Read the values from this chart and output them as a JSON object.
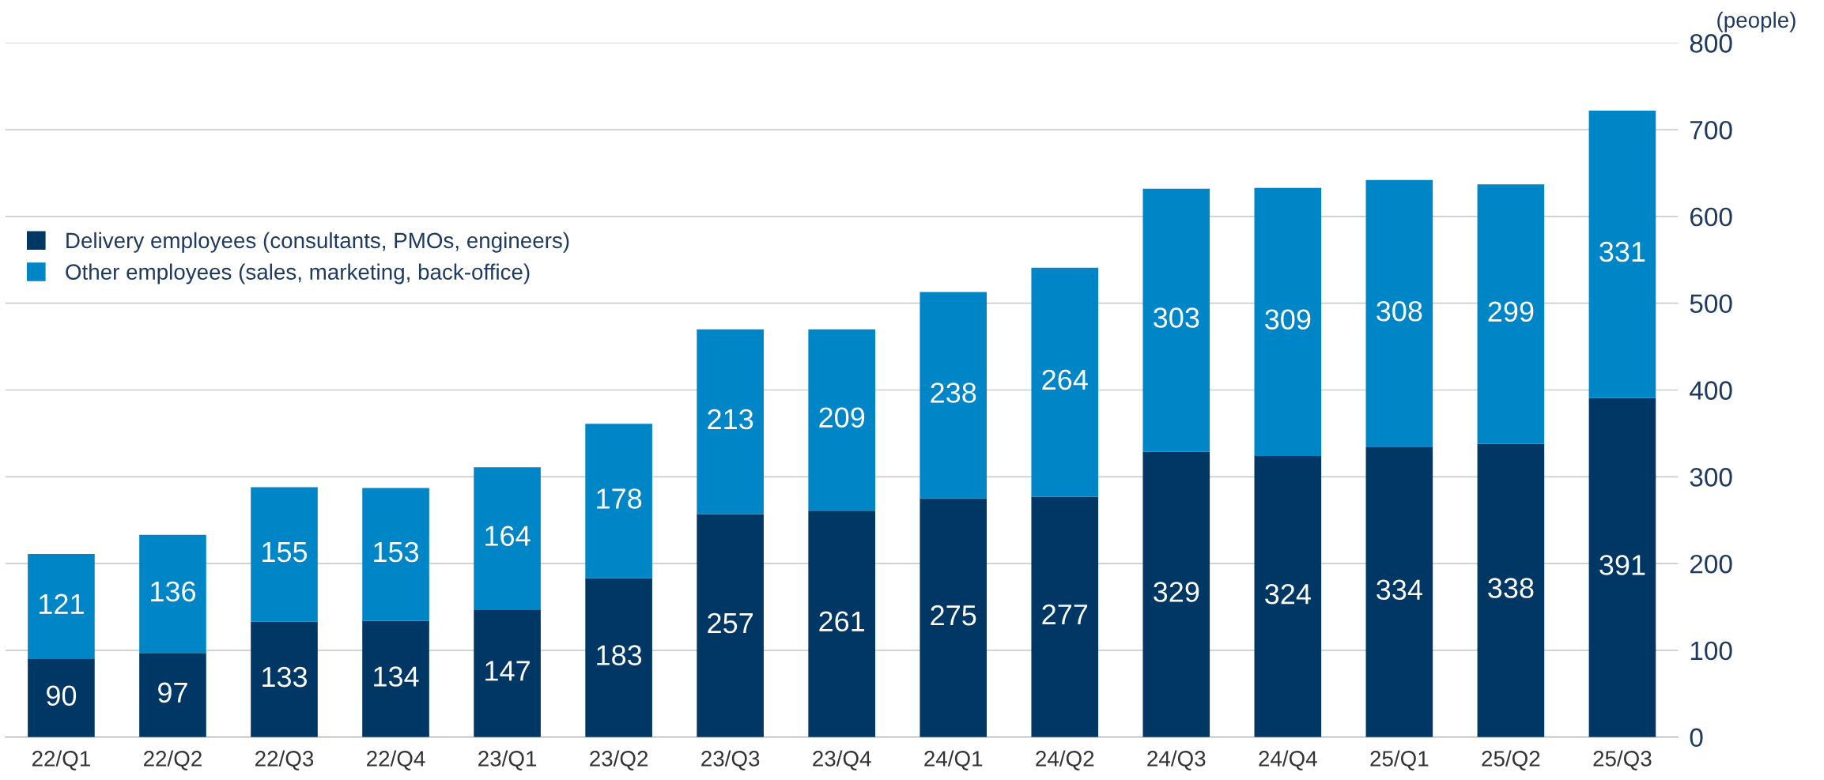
{
  "chart_data": {
    "type": "bar",
    "stacked": true,
    "ylabel": "(people)",
    "categories": [
      "22/Q1",
      "22/Q2",
      "22/Q3",
      "22/Q4",
      "23/Q1",
      "23/Q2",
      "23/Q3",
      "23/Q4",
      "24/Q1",
      "24/Q2",
      "24/Q3",
      "24/Q4",
      "25/Q1",
      "25/Q2",
      "25/Q3"
    ],
    "series": [
      {
        "name": "Delivery employees (consultants, PMOs, engineers)",
        "color": "#003764",
        "values": [
          90,
          97,
          133,
          134,
          147,
          183,
          257,
          261,
          275,
          277,
          329,
          324,
          334,
          338,
          391
        ]
      },
      {
        "name": "Other employees (sales, marketing, back-office)",
        "color": "#0086c6",
        "values": [
          121,
          136,
          155,
          153,
          164,
          178,
          213,
          209,
          238,
          264,
          303,
          309,
          308,
          299,
          331
        ]
      }
    ],
    "ylim": [
      0,
      800
    ],
    "yticks": [
      0,
      100,
      200,
      300,
      400,
      500,
      600,
      700,
      800
    ],
    "grid": "y",
    "legend": "top left",
    "data_labels": true
  }
}
